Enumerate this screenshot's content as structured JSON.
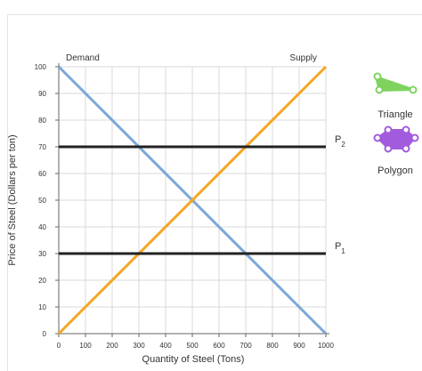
{
  "chart_data": {
    "type": "line",
    "xlabel": "Quantity of Steel (Tons)",
    "ylabel": "Price of Steel (Dollars per ton)",
    "xlim": [
      0,
      1000
    ],
    "ylim": [
      0,
      100
    ],
    "xticks": [
      0,
      100,
      200,
      300,
      400,
      500,
      600,
      700,
      800,
      900,
      1000
    ],
    "yticks": [
      0,
      10,
      20,
      30,
      40,
      50,
      60,
      70,
      80,
      90,
      100
    ],
    "series": [
      {
        "name": "Demand",
        "color": "#7ba7d6",
        "x": [
          0,
          1000
        ],
        "y": [
          100,
          0
        ]
      },
      {
        "name": "Supply",
        "color": "#f5a623",
        "x": [
          0,
          1000
        ],
        "y": [
          0,
          100
        ]
      }
    ],
    "price_lines": [
      {
        "label": "P",
        "sub": "2",
        "y": 70,
        "color": "#222222"
      },
      {
        "label": "P",
        "sub": "1",
        "y": 30,
        "color": "#222222"
      }
    ]
  },
  "toolbox": {
    "triangle": {
      "label": "Triangle",
      "color": "#7ed35f"
    },
    "polygon": {
      "label": "Polygon",
      "color": "#a25bdc"
    }
  }
}
